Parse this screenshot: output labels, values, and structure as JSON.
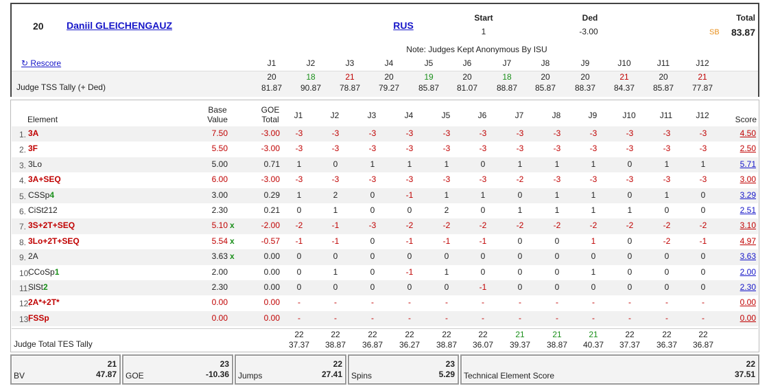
{
  "skater": {
    "rank": "20",
    "name": "Daniil GLEICHENGAUZ",
    "nation": "RUS",
    "start_label": "Start",
    "start_value": "1",
    "ded_label": "Ded",
    "ded_value": "-3.00",
    "total_label": "Total",
    "sb_label": "SB",
    "total_value": "83.87"
  },
  "note": "Note: Judges Kept Anonymous By ISU",
  "rescore_label": "Rescore",
  "judge_labels": [
    "J1",
    "J2",
    "J3",
    "J4",
    "J5",
    "J6",
    "J7",
    "J8",
    "J9",
    "J10",
    "J11",
    "J12"
  ],
  "tss_tally": {
    "label": "Judge TSS Tally (+ Ded)",
    "ranks": [
      "20",
      "18",
      "21",
      "20",
      "19",
      "20",
      "18",
      "20",
      "20",
      "21",
      "20",
      "21"
    ],
    "rank_colors": [
      "#222222",
      "#1a8f1a",
      "#c00000",
      "#222222",
      "#1a8f1a",
      "#222222",
      "#1a8f1a",
      "#222222",
      "#222222",
      "#c00000",
      "#222222",
      "#c00000"
    ],
    "scores": [
      "81.87",
      "90.87",
      "78.87",
      "79.27",
      "85.87",
      "81.07",
      "88.87",
      "85.87",
      "88.37",
      "84.37",
      "85.87",
      "77.87"
    ]
  },
  "table_headers": {
    "element": "Element",
    "base_value_1": "Base",
    "base_value_2": "Value",
    "goe_1": "GOE",
    "goe_2": "Total",
    "score": "Score"
  },
  "elements": [
    {
      "num": "1.",
      "name": "3A",
      "name_color": "#c00000",
      "base": "7.50",
      "base_color": "#c00000",
      "base_mark": "",
      "goe": "-3.00",
      "goe_color": "#c00000",
      "j": [
        "-3",
        "-3",
        "-3",
        "-3",
        "-3",
        "-3",
        "-3",
        "-3",
        "-3",
        "-3",
        "-3",
        "-3"
      ],
      "score": "4.50",
      "score_color": "#c00000"
    },
    {
      "num": "2.",
      "name": "3F",
      "name_color": "#c00000",
      "base": "5.50",
      "base_color": "#c00000",
      "base_mark": "",
      "goe": "-3.00",
      "goe_color": "#c00000",
      "j": [
        "-3",
        "-3",
        "-3",
        "-3",
        "-3",
        "-3",
        "-3",
        "-3",
        "-3",
        "-3",
        "-3",
        "-3"
      ],
      "score": "2.50",
      "score_color": "#c00000"
    },
    {
      "num": "3.",
      "name": "3Lo",
      "name_color": "#222222",
      "base": "5.00",
      "base_color": "#222222",
      "base_mark": "",
      "goe": "0.71",
      "goe_color": "#222222",
      "j": [
        "1",
        "0",
        "1",
        "1",
        "1",
        "0",
        "1",
        "1",
        "1",
        "0",
        "1",
        "1"
      ],
      "score": "5.71",
      "score_color": "#1515c8"
    },
    {
      "num": "4.",
      "name": "3A+SEQ",
      "name_color": "#c00000",
      "base": "6.00",
      "base_color": "#c00000",
      "base_mark": "",
      "goe": "-3.00",
      "goe_color": "#c00000",
      "j": [
        "-3",
        "-3",
        "-3",
        "-3",
        "-3",
        "-3",
        "-2",
        "-3",
        "-3",
        "-3",
        "-3",
        "-3"
      ],
      "score": "3.00",
      "score_color": "#c00000"
    },
    {
      "num": "5.",
      "name": "CSSp",
      "level": "4",
      "name_color": "#222222",
      "base": "3.00",
      "base_color": "#222222",
      "base_mark": "",
      "goe": "0.29",
      "goe_color": "#222222",
      "j": [
        "1",
        "2",
        "0",
        "-1",
        "1",
        "1",
        "0",
        "1",
        "1",
        "0",
        "1",
        "0"
      ],
      "score": "3.29",
      "score_color": "#1515c8"
    },
    {
      "num": "6.",
      "name": "CiSt2",
      "sup": "12",
      "name_color": "#222222",
      "base": "2.30",
      "base_color": "#222222",
      "base_mark": "",
      "goe": "0.21",
      "goe_color": "#222222",
      "j": [
        "0",
        "1",
        "0",
        "0",
        "2",
        "0",
        "1",
        "1",
        "1",
        "1",
        "0",
        "0"
      ],
      "score": "2.51",
      "score_color": "#1515c8"
    },
    {
      "num": "7.",
      "name": "3S+2T+SEQ",
      "name_color": "#c00000",
      "base": "5.10",
      "base_color": "#c00000",
      "base_mark": "x",
      "goe": "-2.00",
      "goe_color": "#c00000",
      "j": [
        "-2",
        "-1",
        "-3",
        "-2",
        "-2",
        "-2",
        "-2",
        "-2",
        "-2",
        "-2",
        "-2",
        "-2"
      ],
      "score": "3.10",
      "score_color": "#c00000"
    },
    {
      "num": "8.",
      "name": "3Lo+2T+SEQ",
      "name_color": "#c00000",
      "base": "5.54",
      "base_color": "#c00000",
      "base_mark": "x",
      "goe": "-0.57",
      "goe_color": "#c00000",
      "j": [
        "-1",
        "-1",
        "0",
        "-1",
        "-1",
        "-1",
        "0",
        "0",
        "1",
        "0",
        "-2",
        "-1"
      ],
      "score": "4.97",
      "score_color": "#c00000"
    },
    {
      "num": "9.",
      "name": "2A",
      "name_color": "#222222",
      "base": "3.63",
      "base_color": "#222222",
      "base_mark": "x",
      "goe": "0.00",
      "goe_color": "#222222",
      "j": [
        "0",
        "0",
        "0",
        "0",
        "0",
        "0",
        "0",
        "0",
        "0",
        "0",
        "0",
        "0"
      ],
      "score": "3.63",
      "score_color": "#1515c8"
    },
    {
      "num": "10.",
      "name": "CCoSp",
      "level": "1",
      "name_color": "#222222",
      "base": "2.00",
      "base_color": "#222222",
      "base_mark": "",
      "goe": "0.00",
      "goe_color": "#222222",
      "j": [
        "0",
        "1",
        "0",
        "-1",
        "1",
        "0",
        "0",
        "0",
        "1",
        "0",
        "0",
        "0"
      ],
      "score": "2.00",
      "score_color": "#1515c8"
    },
    {
      "num": "11.",
      "name": "SlSt",
      "level": "2",
      "name_color": "#222222",
      "base": "2.30",
      "base_color": "#222222",
      "base_mark": "",
      "goe": "0.00",
      "goe_color": "#222222",
      "j": [
        "0",
        "0",
        "0",
        "0",
        "0",
        "-1",
        "0",
        "0",
        "0",
        "0",
        "0",
        "0"
      ],
      "score": "2.30",
      "score_color": "#1515c8"
    },
    {
      "num": "12.",
      "name": "2A*+2T*",
      "name_color": "#c00000",
      "base": "0.00",
      "base_color": "#c00000",
      "base_mark": "",
      "goe": "0.00",
      "goe_color": "#c00000",
      "j": [
        "-",
        "-",
        "-",
        "-",
        "-",
        "-",
        "-",
        "-",
        "-",
        "-",
        "-",
        "-"
      ],
      "score": "0.00",
      "score_color": "#c00000"
    },
    {
      "num": "13.",
      "name": "FSSp",
      "name_color": "#c00000",
      "base": "0.00",
      "base_color": "#c00000",
      "base_mark": "",
      "goe": "0.00",
      "goe_color": "#c00000",
      "j": [
        "-",
        "-",
        "-",
        "-",
        "-",
        "-",
        "-",
        "-",
        "-",
        "-",
        "-",
        "-"
      ],
      "score": "0.00",
      "score_color": "#c00000"
    }
  ],
  "tes_tally": {
    "label": "Judge Total TES Tally",
    "ranks": [
      "22",
      "22",
      "22",
      "22",
      "22",
      "22",
      "21",
      "21",
      "21",
      "22",
      "22",
      "22"
    ],
    "rank_colors": [
      "#222222",
      "#222222",
      "#222222",
      "#222222",
      "#222222",
      "#222222",
      "#1a8f1a",
      "#1a8f1a",
      "#1a8f1a",
      "#222222",
      "#222222",
      "#222222"
    ],
    "scores": [
      "37.37",
      "38.87",
      "36.87",
      "36.27",
      "38.87",
      "36.07",
      "39.37",
      "38.87",
      "40.37",
      "37.37",
      "36.37",
      "36.87"
    ]
  },
  "footer": {
    "bv": {
      "label": "BV",
      "rank": "21",
      "value": "47.87"
    },
    "goe": {
      "label": "GOE",
      "rank": "23",
      "value": "-10.36"
    },
    "jumps": {
      "label": "Jumps",
      "rank": "22",
      "value": "27.41"
    },
    "spins": {
      "label": "Spins",
      "rank": "23",
      "value": "5.29"
    },
    "tes": {
      "label": "Technical Element Score",
      "rank": "22",
      "value": "37.51"
    }
  },
  "colors": {
    "red": "#c00000",
    "green": "#1a8f1a",
    "blue_link": "#1515c8",
    "sb_orange": "#e8901e"
  },
  "icons": {
    "rescore": "refresh-icon"
  }
}
